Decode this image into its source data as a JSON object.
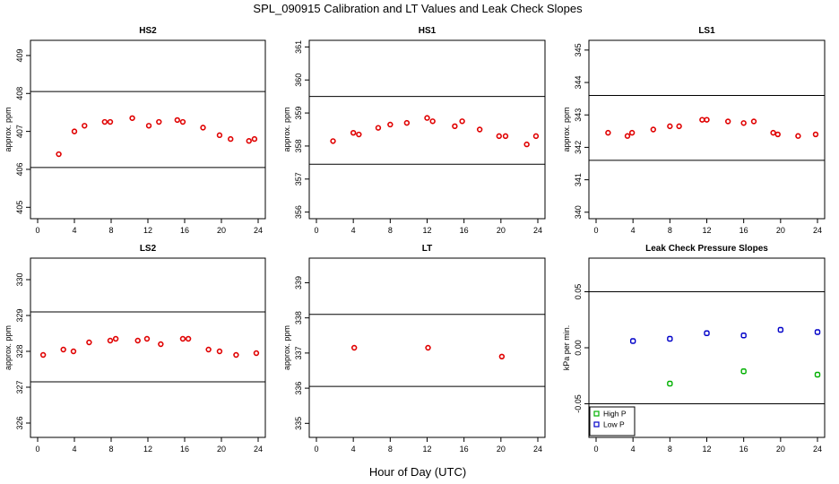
{
  "figure": {
    "title": "SPL_090915  Calibration and LT Values and Leak Check Slopes",
    "xlabel": "Hour of Day (UTC)"
  },
  "colors": {
    "point": "#e00000",
    "high_p": "#00b000",
    "low_p": "#0000c8",
    "line": "#000000"
  },
  "chart_data": [
    {
      "type": "scatter",
      "title": "HS2",
      "ylabel": "approx. ppm",
      "xlim": [
        0,
        24
      ],
      "x_ticks": [
        "0",
        "4",
        "8",
        "12",
        "16",
        "20",
        "24"
      ],
      "ylim": [
        404.7,
        409.4
      ],
      "y_ticks": [
        "405",
        "406",
        "407",
        "408",
        "409"
      ],
      "hlines": [
        408.05,
        406.05
      ],
      "series": [
        {
          "x": [
            2.3,
            4.0,
            5.1,
            7.3,
            7.9,
            10.3,
            12.1,
            13.2,
            15.2,
            15.8,
            18.0,
            19.8,
            21.0,
            23.0,
            23.6
          ],
          "y": [
            406.4,
            407.0,
            407.15,
            407.25,
            407.25,
            407.35,
            407.15,
            407.25,
            407.3,
            407.25,
            407.1,
            406.9,
            406.8,
            406.75,
            406.8
          ]
        }
      ]
    },
    {
      "type": "scatter",
      "title": "HS1",
      "ylabel": "approx. ppm",
      "xlim": [
        0,
        24
      ],
      "x_ticks": [
        "0",
        "4",
        "8",
        "12",
        "16",
        "20",
        "24"
      ],
      "ylim": [
        355.8,
        361.2
      ],
      "y_ticks": [
        "356",
        "357",
        "358",
        "359",
        "360",
        "361"
      ],
      "hlines": [
        359.5,
        357.45
      ],
      "series": [
        {
          "x": [
            1.8,
            4.0,
            4.6,
            6.7,
            8.0,
            9.8,
            12.0,
            12.6,
            15.0,
            15.8,
            17.7,
            19.8,
            20.5,
            22.8,
            23.8
          ],
          "y": [
            358.15,
            358.4,
            358.35,
            358.55,
            358.65,
            358.7,
            358.85,
            358.75,
            358.6,
            358.75,
            358.5,
            358.3,
            358.3,
            358.05,
            358.3
          ]
        }
      ]
    },
    {
      "type": "scatter",
      "title": "LS1",
      "ylabel": "approx. ppm",
      "xlim": [
        0,
        24
      ],
      "x_ticks": [
        "0",
        "4",
        "8",
        "12",
        "16",
        "20",
        "24"
      ],
      "ylim": [
        339.8,
        345.3
      ],
      "y_ticks": [
        "340",
        "341",
        "342",
        "343",
        "344",
        "345"
      ],
      "hlines": [
        343.6,
        341.6
      ],
      "series": [
        {
          "x": [
            1.3,
            3.4,
            3.9,
            6.2,
            8.0,
            9.0,
            11.5,
            12.0,
            14.3,
            16.0,
            17.1,
            19.2,
            19.7,
            21.9,
            23.8
          ],
          "y": [
            342.45,
            342.35,
            342.45,
            342.55,
            342.65,
            342.65,
            342.85,
            342.85,
            342.8,
            342.75,
            342.8,
            342.45,
            342.4,
            342.35,
            342.4
          ]
        }
      ]
    },
    {
      "type": "scatter",
      "title": "LS2",
      "ylabel": "approx. ppm",
      "xlim": [
        0,
        24
      ],
      "x_ticks": [
        "0",
        "4",
        "8",
        "12",
        "16",
        "20",
        "24"
      ],
      "ylim": [
        325.6,
        330.6
      ],
      "y_ticks": [
        "326",
        "327",
        "328",
        "329",
        "330"
      ],
      "hlines": [
        329.1,
        327.15
      ],
      "series": [
        {
          "x": [
            0.6,
            2.8,
            3.9,
            5.6,
            7.9,
            8.5,
            10.9,
            11.9,
            13.4,
            15.8,
            16.4,
            18.6,
            19.8,
            21.6,
            23.8
          ],
          "y": [
            327.9,
            328.05,
            328.0,
            328.25,
            328.3,
            328.35,
            328.3,
            328.35,
            328.2,
            328.35,
            328.35,
            328.05,
            328.0,
            327.9,
            327.95
          ]
        }
      ]
    },
    {
      "type": "scatter",
      "title": "LT",
      "ylabel": "approx. ppm",
      "xlim": [
        0,
        24
      ],
      "x_ticks": [
        "0",
        "4",
        "8",
        "12",
        "16",
        "20",
        "24"
      ],
      "ylim": [
        334.6,
        339.7
      ],
      "y_ticks": [
        "335",
        "336",
        "337",
        "338",
        "339"
      ],
      "hlines": [
        338.1,
        336.05
      ],
      "series": [
        {
          "x": [
            4.1,
            12.1,
            20.1
          ],
          "y": [
            337.15,
            337.15,
            336.9
          ]
        }
      ]
    },
    {
      "type": "scatter",
      "title": "Leak Check Pressure Slopes",
      "ylabel": "kPa per min.",
      "xlim": [
        0,
        24
      ],
      "x_ticks": [
        "0",
        "4",
        "8",
        "12",
        "16",
        "20",
        "24"
      ],
      "ylim": [
        -0.08,
        0.08
      ],
      "y_ticks": [
        "-0.05",
        "0.00",
        "0.05"
      ],
      "hlines": [
        0.05,
        -0.05
      ],
      "legend": {
        "position": "bottom-left"
      },
      "series": [
        {
          "name": "High P",
          "x": [
            8.0,
            16.0,
            24.0
          ],
          "y": [
            -0.032,
            -0.021,
            -0.024
          ]
        },
        {
          "name": "Low P",
          "x": [
            4.0,
            8.0,
            12.0,
            16.0,
            20.0,
            24.0
          ],
          "y": [
            0.006,
            0.008,
            0.013,
            0.011,
            0.016,
            0.014
          ]
        }
      ]
    }
  ]
}
